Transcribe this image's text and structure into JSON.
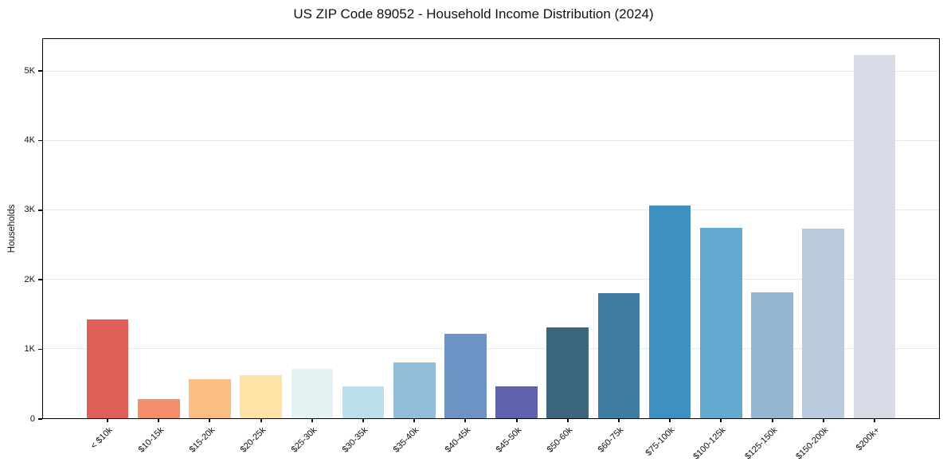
{
  "chart_data": {
    "type": "bar",
    "title": "US ZIP Code 89052 - Household Income Distribution (2024)",
    "xlabel": "",
    "ylabel": "Households",
    "categories": [
      "< $10k",
      "$10-15k",
      "$15-20k",
      "$20-25k",
      "$25-30k",
      "$30-35k",
      "$35-40k",
      "$40-45k",
      "$45-50k",
      "$50-60k",
      "$60-75k",
      "$75-100k",
      "$100-125k",
      "$125-150k",
      "$150-200k",
      "$200k+"
    ],
    "values": [
      1420,
      280,
      565,
      615,
      710,
      455,
      810,
      1220,
      460,
      1305,
      1810,
      3065,
      2750,
      1820,
      2740,
      5240
    ],
    "bar_colors": [
      "#dc5a52",
      "#f28a66",
      "#f9bc7c",
      "#fde2a2",
      "#e3f2f4",
      "#bbdeea",
      "#8fbcd9",
      "#688fc2",
      "#5a5caa",
      "#36607a",
      "#39789f",
      "#388cc0",
      "#5ca6cd",
      "#8fb4d2",
      "#b8c8de",
      "#d7d9e5"
    ],
    "yticks": [
      {
        "value": 0,
        "label": "0"
      },
      {
        "value": 1000,
        "label": "1K"
      },
      {
        "value": 2000,
        "label": "2K"
      },
      {
        "value": 3000,
        "label": "3K"
      },
      {
        "value": 4000,
        "label": "4K"
      },
      {
        "value": 5000,
        "label": "5K"
      }
    ],
    "ylim": [
      0,
      5470
    ],
    "grid": "horizontal",
    "grid_color": "#e8e8e8",
    "legend": "none",
    "background_color": "#ffffff"
  }
}
